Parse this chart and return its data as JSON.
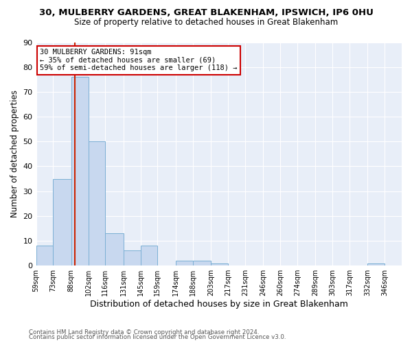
{
  "title_line1": "30, MULBERRY GARDENS, GREAT BLAKENHAM, IPSWICH, IP6 0HU",
  "title_line2": "Size of property relative to detached houses in Great Blakenham",
  "xlabel": "Distribution of detached houses by size in Great Blakenham",
  "ylabel": "Number of detached properties",
  "footer_line1": "Contains HM Land Registry data © Crown copyright and database right 2024.",
  "footer_line2": "Contains public sector information licensed under the Open Government Licence v3.0.",
  "bin_labels": [
    "59sqm",
    "73sqm",
    "88sqm",
    "102sqm",
    "116sqm",
    "131sqm",
    "145sqm",
    "159sqm",
    "174sqm",
    "188sqm",
    "203sqm",
    "217sqm",
    "231sqm",
    "246sqm",
    "260sqm",
    "274sqm",
    "289sqm",
    "303sqm",
    "317sqm",
    "332sqm",
    "346sqm"
  ],
  "bar_values": [
    8,
    35,
    76,
    50,
    13,
    6,
    8,
    0,
    2,
    2,
    1,
    0,
    0,
    0,
    0,
    0,
    0,
    0,
    0,
    1,
    0
  ],
  "bar_color": "#c8d8ef",
  "bar_edge_color": "#7aafd4",
  "property_line_label": "30 MULBERRY GARDENS: 91sqm",
  "annotation_line2": "← 35% of detached houses are smaller (69)",
  "annotation_line3": "59% of semi-detached houses are larger (118) →",
  "annotation_box_color": "#ffffff",
  "annotation_box_edge": "#cc0000",
  "property_line_color": "#cc2200",
  "ylim": [
    0,
    90
  ],
  "yticks": [
    0,
    10,
    20,
    30,
    40,
    50,
    60,
    70,
    80,
    90
  ],
  "bin_edges": [
    59,
    73,
    88,
    102,
    116,
    131,
    145,
    159,
    174,
    188,
    203,
    217,
    231,
    246,
    260,
    274,
    289,
    303,
    317,
    332,
    346,
    360
  ],
  "background_color": "#ffffff",
  "plot_bg_color": "#e8eef8",
  "grid_color": "#ffffff"
}
